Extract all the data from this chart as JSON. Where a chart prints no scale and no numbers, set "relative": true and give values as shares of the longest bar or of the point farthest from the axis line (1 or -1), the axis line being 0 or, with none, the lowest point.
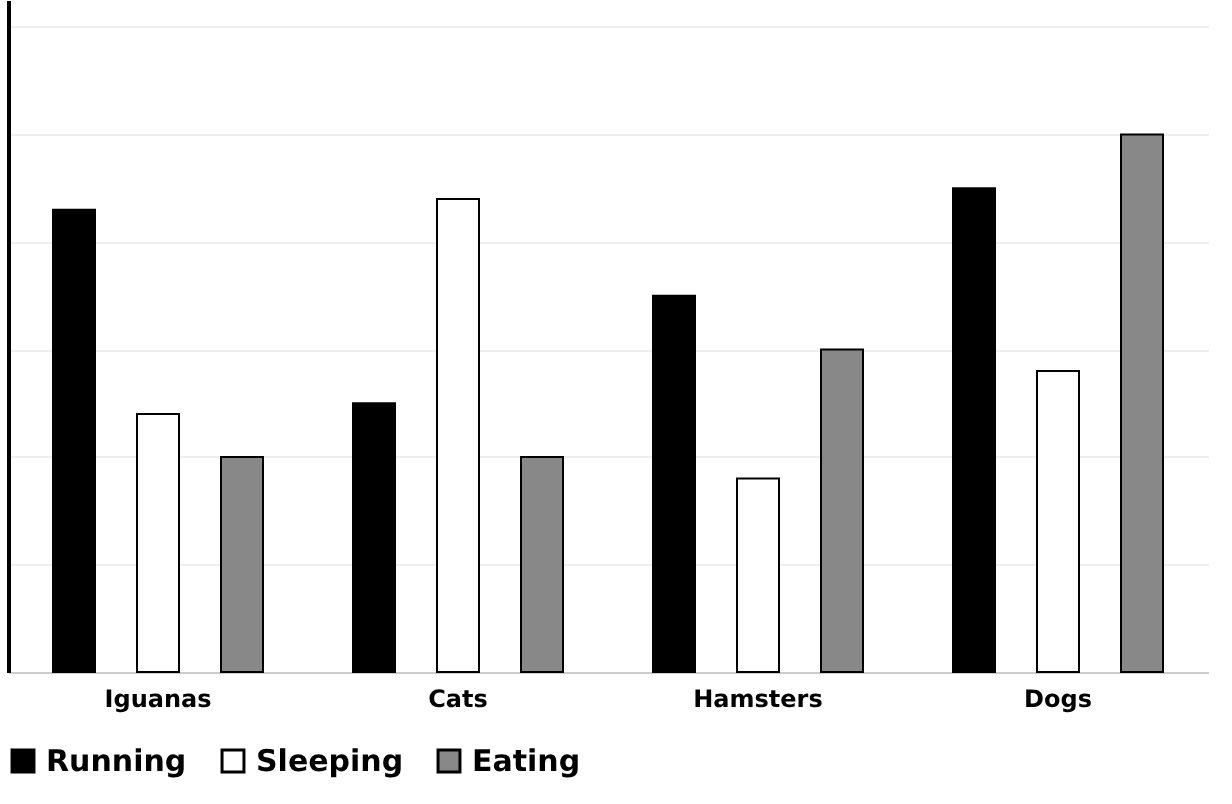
{
  "chart_data": {
    "type": "bar",
    "relative": true,
    "grid": "y",
    "legend": "bottom",
    "categories": [
      "Iguanas",
      "Cats",
      "Hamsters",
      "Dogs"
    ],
    "series": [
      {
        "name": "Running",
        "color": "#000000",
        "values": [
          0.86,
          0.5,
          0.7,
          0.9
        ]
      },
      {
        "name": "Sleeping",
        "color": "#ffffff",
        "values": [
          0.48,
          0.88,
          0.36,
          0.56
        ]
      },
      {
        "name": "Eating",
        "color": "#888888",
        "values": [
          0.4,
          0.4,
          0.6,
          1.0
        ]
      }
    ]
  }
}
